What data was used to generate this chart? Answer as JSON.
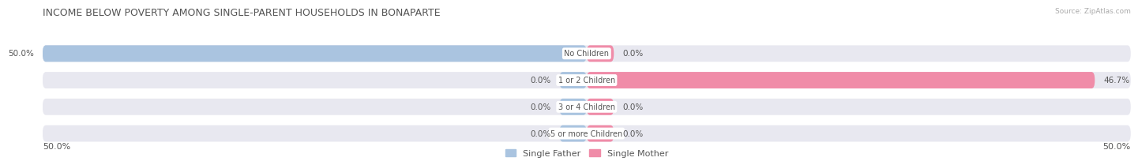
{
  "title": "INCOME BELOW POVERTY AMONG SINGLE-PARENT HOUSEHOLDS IN BONAPARTE",
  "source": "Source: ZipAtlas.com",
  "categories": [
    "No Children",
    "1 or 2 Children",
    "3 or 4 Children",
    "5 or more Children"
  ],
  "single_father": [
    50.0,
    0.0,
    0.0,
    0.0
  ],
  "single_mother": [
    0.0,
    46.7,
    0.0,
    0.0
  ],
  "max_val": 50.0,
  "father_color": "#aac4e0",
  "mother_color": "#f08ca8",
  "bar_bg_color": "#e8e8f0",
  "label_color": "#555555",
  "title_color": "#555555",
  "source_color": "#aaaaaa",
  "axis_label_fontsize": 8,
  "title_fontsize": 9,
  "category_fontsize": 7,
  "value_fontsize": 7.5,
  "bar_height": 0.62,
  "bg_color": "#ffffff",
  "stub_size": 2.5
}
